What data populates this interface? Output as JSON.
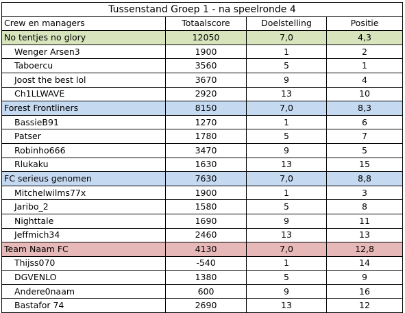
{
  "title": "Tussenstand Groep 1 - na speelronde 4",
  "headers": [
    "Crew en managers",
    "Totaalscore",
    "Doelstelling",
    "Positie"
  ],
  "teams": [
    {
      "name": "No tentjes no glory",
      "score": "12050",
      "target": "7,0",
      "position": "4,3",
      "color": "#d8e4bc",
      "players": [
        {
          "name": "Wenger Arsen3",
          "score": "1900",
          "target": "1",
          "position": "2"
        },
        {
          "name": "Taboercu",
          "score": "3560",
          "target": "5",
          "position": "1"
        },
        {
          "name": "Joost the best lol",
          "score": "3670",
          "target": "9",
          "position": "4"
        },
        {
          "name": "Ch1LLWAVE",
          "score": "2920",
          "target": "13",
          "position": "10"
        }
      ]
    },
    {
      "name": "Forest Frontliners",
      "score": "8150",
      "target": "7,0",
      "position": "8,3",
      "color": "#c5d9f1",
      "players": [
        {
          "name": "BassieB91",
          "score": "1270",
          "target": "1",
          "position": "6"
        },
        {
          "name": "Patser",
          "score": "1780",
          "target": "5",
          "position": "7"
        },
        {
          "name": "Robinho666",
          "score": "3470",
          "target": "9",
          "position": "5"
        },
        {
          "name": "Rlukaku",
          "score": "1630",
          "target": "13",
          "position": "15"
        }
      ]
    },
    {
      "name": "FC serieus genomen",
      "score": "7630",
      "target": "7,0",
      "position": "8,8",
      "color": "#c5d9f1",
      "players": [
        {
          "name": "Mitchelwilms77x",
          "score": "1900",
          "target": "1",
          "position": "3"
        },
        {
          "name": "Jaribo_2",
          "score": "1580",
          "target": "5",
          "position": "8"
        },
        {
          "name": "Nighttale",
          "score": "1690",
          "target": "9",
          "position": "11"
        },
        {
          "name": "Jeffmich34",
          "score": "2460",
          "target": "13",
          "position": "13"
        }
      ]
    },
    {
      "name": "Team Naam FC",
      "score": "4130",
      "target": "7,0",
      "position": "12,8",
      "color": "#e6b8b7",
      "players": [
        {
          "name": "Thijss070",
          "score": "-540",
          "target": "1",
          "position": "14"
        },
        {
          "name": "DGVENLO",
          "score": "1380",
          "target": "5",
          "position": "9"
        },
        {
          "name": "Andere0naam",
          "score": "600",
          "target": "9",
          "position": "16"
        },
        {
          "name": "Bastafor 74",
          "score": "2690",
          "target": "13",
          "position": "12"
        }
      ]
    }
  ]
}
